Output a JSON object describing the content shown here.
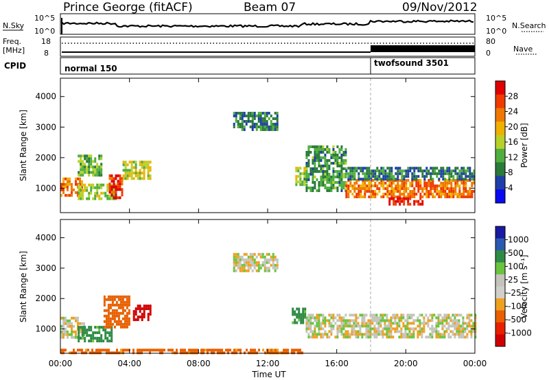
{
  "header": {
    "radar": "Prince George (fitACF)",
    "beam": "Beam 07",
    "date": "09/Nov/2012"
  },
  "status_panel": {
    "nsky_label": "N.Sky",
    "nsky_ticks": [
      "10^5",
      "10^0"
    ],
    "nsearch_label": "N.Search",
    "nsearch_ticks": [
      "10^5",
      "10^0"
    ],
    "freq_label_1": "Freq.",
    "freq_label_2": "[MHz]",
    "freq_ticks": [
      "18",
      "8"
    ],
    "nave_label": "Nave",
    "nave_ticks": [
      "80",
      "0"
    ],
    "cpid_label": "CPID",
    "cpid_modes": [
      {
        "name": "normal 150",
        "start": "00:00"
      },
      {
        "name": "twofsound 3501",
        "start": "18:00"
      }
    ]
  },
  "colors": {
    "power_scale": [
      "#0a0af0",
      "#1f3fa8",
      "#2a7a3a",
      "#4fae3f",
      "#b8d12a",
      "#f0b000",
      "#f07800",
      "#f03a00",
      "#e00000"
    ],
    "velocity_scale": [
      "#1a1aa0",
      "#2a5ab0",
      "#2e8b46",
      "#6ac43e",
      "#c4c4bc",
      "#d0d0c8",
      "#f0a020",
      "#e86000",
      "#e82000",
      "#d00000"
    ]
  },
  "chart_data": [
    {
      "type": "heatmap",
      "title": "Power",
      "xlabel": "Time UT",
      "ylabel": "Slant Range [km]",
      "xticks": [
        "00:00",
        "04:00",
        "08:00",
        "12:00",
        "16:00",
        "20:00",
        "00:00"
      ],
      "yticks": [
        "1000",
        "2000",
        "3000",
        "4000"
      ],
      "ylim": [
        200,
        4600
      ],
      "xlim_hours": [
        0,
        24
      ],
      "colorbar_label": "Power [dB]",
      "colorbar_ticks": [
        "4",
        "8",
        "12",
        "16",
        "20",
        "24",
        "28"
      ],
      "echo_regions": [
        {
          "t0": 0.0,
          "t1": 1.2,
          "r0": 750,
          "r1": 1350,
          "level": 22
        },
        {
          "t0": 1.0,
          "t1": 3.2,
          "r0": 650,
          "r1": 1150,
          "level": 14
        },
        {
          "t0": 2.8,
          "t1": 3.6,
          "r0": 700,
          "r1": 1450,
          "level": 26
        },
        {
          "t0": 1.0,
          "t1": 2.4,
          "r0": 1450,
          "r1": 2100,
          "level": 12
        },
        {
          "t0": 3.6,
          "t1": 5.2,
          "r0": 1300,
          "r1": 1900,
          "level": 16
        },
        {
          "t0": 10.0,
          "t1": 12.6,
          "r0": 2900,
          "r1": 3500,
          "level": 8
        },
        {
          "t0": 13.6,
          "t1": 14.2,
          "r0": 1100,
          "r1": 1700,
          "level": 14
        },
        {
          "t0": 14.2,
          "t1": 16.5,
          "r0": 900,
          "r1": 2400,
          "level": 10
        },
        {
          "t0": 16.5,
          "t1": 24.0,
          "r0": 700,
          "r1": 1300,
          "level": 22
        },
        {
          "t0": 16.5,
          "t1": 24.0,
          "r0": 1300,
          "r1": 1700,
          "level": 8
        },
        {
          "t0": 19.0,
          "t1": 21.0,
          "r0": 450,
          "r1": 700,
          "level": 28
        }
      ]
    },
    {
      "type": "heatmap",
      "title": "Velocity",
      "xlabel": "Time UT",
      "ylabel": "Slant Range [km]",
      "xticks": [
        "00:00",
        "04:00",
        "08:00",
        "12:00",
        "16:00",
        "20:00",
        "00:00"
      ],
      "yticks": [
        "1000",
        "2000",
        "3000",
        "4000"
      ],
      "ylim": [
        200,
        4600
      ],
      "xlim_hours": [
        0,
        24
      ],
      "colorbar_label": "Velocity [m s⁻¹]",
      "colorbar_ticks": [
        "1000",
        "500",
        "100",
        "25",
        "-25",
        "-100",
        "-500",
        "-1000"
      ],
      "echo_regions": [
        {
          "t0": 0.0,
          "t1": 1.4,
          "r0": 750,
          "r1": 1400,
          "value": 0
        },
        {
          "t0": 1.0,
          "t1": 3.0,
          "r0": 600,
          "r1": 1100,
          "value": 150
        },
        {
          "t0": 2.5,
          "t1": 4.0,
          "r0": 1100,
          "r1": 2100,
          "value": -200
        },
        {
          "t0": 4.2,
          "t1": 5.2,
          "r0": 1300,
          "r1": 1800,
          "value": -800
        },
        {
          "t0": 10.0,
          "t1": 12.6,
          "r0": 2900,
          "r1": 3500,
          "value": 0
        },
        {
          "t0": 13.4,
          "t1": 14.2,
          "r0": 1200,
          "r1": 1700,
          "value": 150
        },
        {
          "t0": 14.2,
          "t1": 24.0,
          "r0": 700,
          "r1": 1500,
          "value": 0
        },
        {
          "t0": 0.0,
          "t1": 14.0,
          "r0": 250,
          "r1": 350,
          "value": -150
        }
      ]
    }
  ]
}
